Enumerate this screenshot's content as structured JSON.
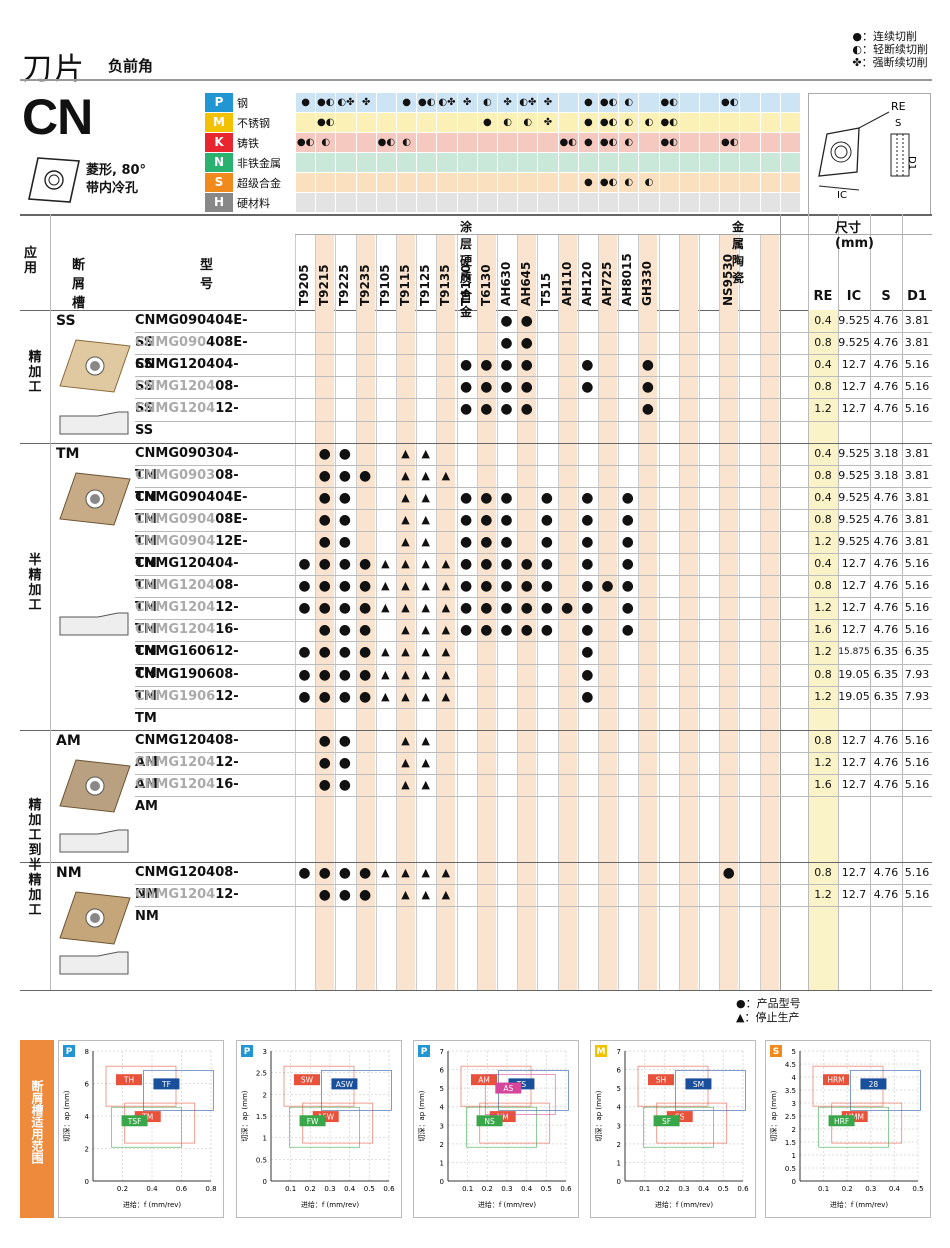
{
  "header": {
    "title": "刀片",
    "subtitle": "负前角",
    "code": "CN",
    "shape_desc1": "菱形, 80°",
    "shape_desc2": "带内冷孔"
  },
  "legend_top": [
    "●：连续切削",
    "◐：轻断续切削",
    "✤：强断续切削"
  ],
  "materials": [
    {
      "letter": "P",
      "name": "钢",
      "color": "#2196d3",
      "bg": "#cde4f5"
    },
    {
      "letter": "M",
      "name": "不锈钢",
      "color": "#f2c200",
      "bg": "#fbf0b5"
    },
    {
      "letter": "K",
      "name": "铸铁",
      "color": "#e8262f",
      "bg": "#f6c9c0"
    },
    {
      "letter": "N",
      "name": "非铁金属",
      "color": "#2ab06f",
      "bg": "#c9e8da"
    },
    {
      "letter": "S",
      "name": "超级合金",
      "color": "#f08a1d",
      "bg": "#fbe0c0"
    },
    {
      "letter": "H",
      "name": "硬材料",
      "color": "#888888",
      "bg": "#e3e3e3"
    }
  ],
  "mat_marks": {
    "P": [
      "●",
      "●◐",
      "◐✤",
      "✤",
      "",
      "●",
      "●◐",
      "◐✤",
      "✤",
      "◐",
      "✤",
      "◐✤",
      "✤",
      "",
      "●",
      "●◐",
      "◐",
      "",
      "●◐",
      "",
      "",
      "●◐",
      "",
      ""
    ],
    "M": [
      "",
      "●◐",
      "",
      "",
      "",
      "",
      "",
      "",
      "",
      "●",
      "◐",
      "◐",
      "✤",
      "",
      "●",
      "●◐",
      "◐",
      "◐",
      "●◐",
      "",
      "",
      "",
      "",
      ""
    ],
    "K": [
      "●◐",
      "◐",
      "",
      "",
      "●◐",
      "◐",
      "",
      "",
      "",
      "",
      "",
      "",
      "",
      "●◐",
      "●",
      "●◐",
      "◐",
      "",
      "●◐",
      "",
      "",
      "●◐",
      "",
      ""
    ],
    "N": [],
    "S": [
      "",
      "",
      "",
      "",
      "",
      "",
      "",
      "",
      "",
      "",
      "",
      "",
      "",
      "",
      "●",
      "●◐",
      "◐",
      "◐",
      "",
      "",
      "",
      "",
      "",
      ""
    ],
    "H": []
  },
  "table_header": {
    "app": "应用",
    "breaker": "断屑槽",
    "model": "型号",
    "coated": "涂层硬质合金",
    "cermet": "金属陶瓷",
    "size": "尺寸 (mm)",
    "dims": [
      "RE",
      "IC",
      "S",
      "D1"
    ]
  },
  "grades": [
    "T9205",
    "T9215",
    "T9225",
    "T9235",
    "T9105",
    "T9115",
    "T9125",
    "T9135",
    "T6120",
    "T6130",
    "AH630",
    "AH645",
    "T515",
    "AH110",
    "AH120",
    "AH725",
    "AH8015",
    "GH330",
    "",
    "",
    "",
    "NS9530",
    "",
    ""
  ],
  "groups": [
    {
      "name": "SS",
      "side": "精加工",
      "rows": [
        {
          "g": "",
          "m": "CNMG090404E-SS",
          "marks": {
            "10": "●",
            "11": "●"
          },
          "d": [
            "0.4",
            "9.525",
            "4.76",
            "3.81"
          ]
        },
        {
          "g": "CNMG090",
          "m": "408E-SS",
          "marks": {
            "10": "●",
            "11": "●"
          },
          "d": [
            "0.8",
            "9.525",
            "4.76",
            "3.81"
          ]
        },
        {
          "g": "",
          "m": "CNMG120404-SS",
          "marks": {
            "8": "●",
            "9": "●",
            "10": "●",
            "11": "●",
            "14": "●",
            "17": "●"
          },
          "d": [
            "0.4",
            "12.7",
            "4.76",
            "5.16"
          ]
        },
        {
          "g": "CNMG1204",
          "m": "08-SS",
          "marks": {
            "8": "●",
            "9": "●",
            "10": "●",
            "11": "●",
            "14": "●",
            "17": "●"
          },
          "d": [
            "0.8",
            "12.7",
            "4.76",
            "5.16"
          ]
        },
        {
          "g": "CNMG1204",
          "m": "12-SS",
          "marks": {
            "8": "●",
            "9": "●",
            "10": "●",
            "11": "●",
            "17": "●"
          },
          "d": [
            "1.2",
            "12.7",
            "4.76",
            "5.16"
          ]
        }
      ]
    },
    {
      "name": "TM",
      "side": "半精加工",
      "rows": [
        {
          "g": "",
          "m": "CNMG090304-TM",
          "marks": {
            "1": "●",
            "2": "●",
            "5": "▲",
            "6": "▲"
          },
          "d": [
            "0.4",
            "9.525",
            "3.18",
            "3.81"
          ]
        },
        {
          "g": "CNMG0903",
          "m": "08-TM",
          "marks": {
            "1": "●",
            "2": "●",
            "3": "●",
            "5": "▲",
            "6": "▲",
            "7": "▲"
          },
          "d": [
            "0.8",
            "9.525",
            "3.18",
            "3.81"
          ]
        },
        {
          "g": "",
          "m": "CNMG090404E-TM",
          "marks": {
            "1": "●",
            "2": "●",
            "5": "▲",
            "6": "▲",
            "8": "●",
            "9": "●",
            "10": "●",
            "12": "●",
            "14": "●",
            "16": "●"
          },
          "d": [
            "0.4",
            "9.525",
            "4.76",
            "3.81"
          ]
        },
        {
          "g": "CNMG0904",
          "m": "08E-TM",
          "marks": {
            "1": "●",
            "2": "●",
            "5": "▲",
            "6": "▲",
            "8": "●",
            "9": "●",
            "10": "●",
            "12": "●",
            "14": "●",
            "16": "●"
          },
          "d": [
            "0.8",
            "9.525",
            "4.76",
            "3.81"
          ]
        },
        {
          "g": "CNMG0904",
          "m": "12E-TM",
          "marks": {
            "1": "●",
            "2": "●",
            "5": "▲",
            "6": "▲",
            "8": "●",
            "9": "●",
            "10": "●",
            "12": "●",
            "14": "●",
            "16": "●"
          },
          "d": [
            "1.2",
            "9.525",
            "4.76",
            "3.81"
          ]
        },
        {
          "g": "",
          "m": "CNMG120404-TM",
          "marks": {
            "0": "●",
            "1": "●",
            "2": "●",
            "3": "●",
            "4": "▲",
            "5": "▲",
            "6": "▲",
            "7": "▲",
            "8": "●",
            "9": "●",
            "10": "●",
            "11": "●",
            "12": "●",
            "14": "●",
            "16": "●"
          },
          "d": [
            "0.4",
            "12.7",
            "4.76",
            "5.16"
          ]
        },
        {
          "g": "CNMG1204",
          "m": "08-TM",
          "marks": {
            "0": "●",
            "1": "●",
            "2": "●",
            "3": "●",
            "4": "▲",
            "5": "▲",
            "6": "▲",
            "7": "▲",
            "8": "●",
            "9": "●",
            "10": "●",
            "11": "●",
            "12": "●",
            "14": "●",
            "15": "●",
            "16": "●"
          },
          "d": [
            "0.8",
            "12.7",
            "4.76",
            "5.16"
          ]
        },
        {
          "g": "CNMG1204",
          "m": "12-TM",
          "marks": {
            "0": "●",
            "1": "●",
            "2": "●",
            "3": "●",
            "4": "▲",
            "5": "▲",
            "6": "▲",
            "7": "▲",
            "8": "●",
            "9": "●",
            "10": "●",
            "11": "●",
            "12": "●",
            "13": "●",
            "14": "●",
            "16": "●"
          },
          "d": [
            "1.2",
            "12.7",
            "4.76",
            "5.16"
          ]
        },
        {
          "g": "CNMG1204",
          "m": "16-TM",
          "marks": {
            "1": "●",
            "2": "●",
            "3": "●",
            "5": "▲",
            "6": "▲",
            "7": "▲",
            "8": "●",
            "9": "●",
            "10": "●",
            "11": "●",
            "12": "●",
            "14": "●",
            "16": "●"
          },
          "d": [
            "1.6",
            "12.7",
            "4.76",
            "5.16"
          ]
        },
        {
          "g": "",
          "m": "CNMG160612-TM",
          "marks": {
            "0": "●",
            "1": "●",
            "2": "●",
            "3": "●",
            "4": "▲",
            "5": "▲",
            "6": "▲",
            "7": "▲",
            "14": "●"
          },
          "d": [
            "1.2",
            "15.875",
            "6.35",
            "6.35"
          ]
        },
        {
          "g": "",
          "m": "CNMG190608-TM",
          "marks": {
            "0": "●",
            "1": "●",
            "2": "●",
            "3": "●",
            "4": "▲",
            "5": "▲",
            "6": "▲",
            "7": "▲",
            "14": "●"
          },
          "d": [
            "0.8",
            "19.05",
            "6.35",
            "7.93"
          ]
        },
        {
          "g": "CNMG1906",
          "m": "12-TM",
          "marks": {
            "0": "●",
            "1": "●",
            "2": "●",
            "3": "●",
            "4": "▲",
            "5": "▲",
            "6": "▲",
            "7": "▲",
            "14": "●"
          },
          "d": [
            "1.2",
            "19.05",
            "6.35",
            "7.93"
          ]
        }
      ]
    },
    {
      "name": "AM",
      "side": "精加工到半精加工",
      "rows": [
        {
          "g": "",
          "m": "CNMG120408-AM",
          "marks": {
            "1": "●",
            "2": "●",
            "5": "▲",
            "6": "▲"
          },
          "d": [
            "0.8",
            "12.7",
            "4.76",
            "5.16"
          ]
        },
        {
          "g": "CNMG1204",
          "m": "12-AM",
          "marks": {
            "1": "●",
            "2": "●",
            "5": "▲",
            "6": "▲"
          },
          "d": [
            "1.2",
            "12.7",
            "4.76",
            "5.16"
          ]
        },
        {
          "g": "CNMG1204",
          "m": "16-AM",
          "marks": {
            "1": "●",
            "2": "●",
            "5": "▲",
            "6": "▲"
          },
          "d": [
            "1.6",
            "12.7",
            "4.76",
            "5.16"
          ]
        }
      ]
    },
    {
      "name": "NM",
      "side": "",
      "rows": [
        {
          "g": "",
          "m": "CNMG120408-NM",
          "marks": {
            "0": "●",
            "1": "●",
            "2": "●",
            "3": "●",
            "4": "▲",
            "5": "▲",
            "6": "▲",
            "7": "▲",
            "21": "●"
          },
          "d": [
            "0.8",
            "12.7",
            "4.76",
            "5.16"
          ]
        },
        {
          "g": "CNMG1204",
          "m": "12-NM",
          "marks": {
            "1": "●",
            "2": "●",
            "3": "●",
            "5": "▲",
            "6": "▲",
            "7": "▲"
          },
          "d": [
            "1.2",
            "12.7",
            "4.76",
            "5.16"
          ]
        }
      ]
    }
  ],
  "bottom_legend": [
    "●：产品型号",
    "▲：停止生产"
  ],
  "chart_section_label": "断屑槽适用范围",
  "chart_data": [
    {
      "type": "area",
      "badge": "P",
      "ylabel": "切深：ap (mm)",
      "xlabel": "进给：f (mm/rev)",
      "xlim": [
        0,
        0.8
      ],
      "ylim": [
        0,
        8
      ],
      "xticks": [
        "0.2",
        "0.4",
        "0.6",
        "0.8"
      ],
      "yticks": [
        "0",
        "2",
        "4",
        "6",
        "8"
      ],
      "regions": [
        "TH",
        "TM",
        "TF",
        "TSF"
      ]
    },
    {
      "type": "area",
      "badge": "P",
      "ylabel": "切深：ap (mm)",
      "xlabel": "进给：f (mm/rev)",
      "xlim": [
        0,
        0.6
      ],
      "ylim": [
        0,
        3
      ],
      "xticks": [
        "0.1",
        "0.2",
        "0.3",
        "0.4",
        "0.5",
        "0.6"
      ],
      "yticks": [
        "0",
        "0.5",
        "1",
        "1.5",
        "2",
        "2.5",
        "3"
      ],
      "regions": [
        "SW",
        "AFW",
        "ASW",
        "FW"
      ]
    },
    {
      "type": "area",
      "badge": "P",
      "ylabel": "切深：ap (mm)",
      "xlabel": "进给：f (mm/rev)",
      "xlim": [
        0,
        0.6
      ],
      "ylim": [
        0,
        7
      ],
      "xticks": [
        "0.1",
        "0.2",
        "0.3",
        "0.4",
        "0.5",
        "0.6"
      ],
      "yticks": [
        "0",
        "1",
        "2",
        "3",
        "4",
        "5",
        "6",
        "7"
      ],
      "regions": [
        "AM",
        "NM",
        "TS",
        "NS",
        "AS"
      ]
    },
    {
      "type": "area",
      "badge": "M",
      "ylabel": "切深：ap (mm)",
      "xlabel": "进给：f (mm/rev)",
      "xlim": [
        0,
        0.6
      ],
      "ylim": [
        0,
        7
      ],
      "xticks": [
        "0.1",
        "0.2",
        "0.3",
        "0.4",
        "0.5",
        "0.6"
      ],
      "yticks": [
        "0",
        "1",
        "2",
        "3",
        "4",
        "5",
        "6",
        "7"
      ],
      "regions": [
        "SH",
        "SS",
        "SM",
        "SF"
      ]
    },
    {
      "type": "area",
      "badge": "S",
      "ylabel": "切深：ap (mm)",
      "xlabel": "进给：f (mm/rev)",
      "xlim": [
        0,
        0.5
      ],
      "ylim": [
        0,
        5
      ],
      "xticks": [
        "0.1",
        "0.2",
        "0.3",
        "0.4",
        "0.5"
      ],
      "yticks": [
        "0",
        "0.5",
        "1",
        "1.5",
        "2",
        "2.5",
        "3",
        "3.5",
        "4",
        "4.5",
        "5"
      ],
      "regions": [
        "HRM",
        "HMM",
        "28",
        "HRF"
      ]
    }
  ]
}
